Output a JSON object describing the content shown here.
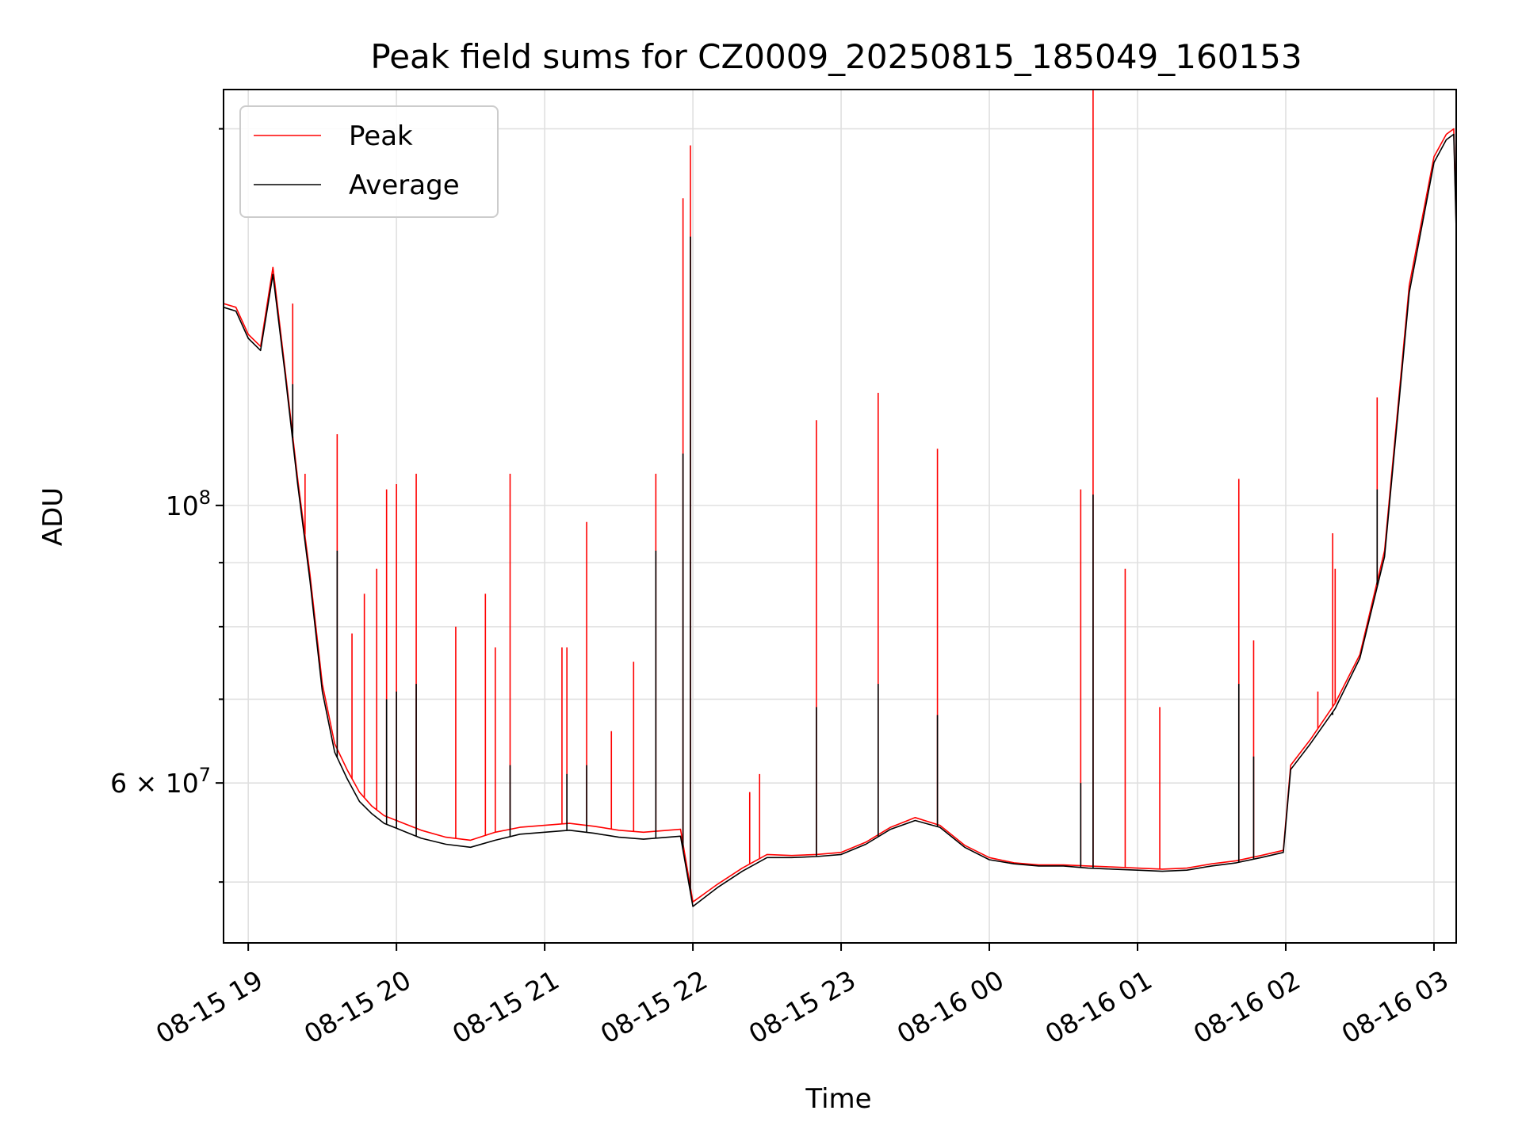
{
  "chart_data": {
    "type": "line",
    "title": "Peak field sums for CZ0009_20250815_185049_160153",
    "xlabel": "Time",
    "ylabel": "ADU",
    "y_scale": "log",
    "ylim": [
      44700000,
      215000000
    ],
    "xlim": [
      "2025-08-15 18:50",
      "2025-08-16 03:09"
    ],
    "x_ticks": [
      "08-15 19",
      "08-15 20",
      "08-15 21",
      "08-15 22",
      "08-15 23",
      "08-16 00",
      "08-16 01",
      "08-16 02",
      "08-16 03"
    ],
    "y_ticks": [
      {
        "value": 100000000,
        "mantissa": "10",
        "exponent": "8"
      },
      {
        "value": 60000000,
        "mantissa": "6 × 10",
        "exponent": "7"
      }
    ],
    "y_minor_ticks": [
      50000000,
      70000000,
      80000000,
      90000000,
      200000000
    ],
    "grid": true,
    "legend_position": "top-left",
    "series": [
      {
        "name": "Peak",
        "color": "#ff0000",
        "x": [
          "2025-08-15 18:50",
          "2025-08-15 18:55",
          "2025-08-15 19:00",
          "2025-08-15 19:05",
          "2025-08-15 19:10",
          "2025-08-15 19:15",
          "2025-08-15 19:20",
          "2025-08-15 19:25",
          "2025-08-15 19:30",
          "2025-08-15 19:35",
          "2025-08-15 19:40",
          "2025-08-15 19:45",
          "2025-08-15 19:50",
          "2025-08-15 19:55",
          "2025-08-15 20:00",
          "2025-08-15 20:10",
          "2025-08-15 20:20",
          "2025-08-15 20:30",
          "2025-08-15 20:40",
          "2025-08-15 20:50",
          "2025-08-15 21:00",
          "2025-08-15 21:10",
          "2025-08-15 21:20",
          "2025-08-15 21:30",
          "2025-08-15 21:40",
          "2025-08-15 21:55",
          "2025-08-15 22:00",
          "2025-08-15 22:10",
          "2025-08-15 22:20",
          "2025-08-15 22:30",
          "2025-08-15 22:40",
          "2025-08-15 22:50",
          "2025-08-15 23:00",
          "2025-08-15 23:10",
          "2025-08-15 23:20",
          "2025-08-15 23:30",
          "2025-08-15 23:40",
          "2025-08-15 23:50",
          "2025-08-16 00:00",
          "2025-08-16 00:10",
          "2025-08-16 00:20",
          "2025-08-16 00:30",
          "2025-08-16 00:40",
          "2025-08-16 00:50",
          "2025-08-16 01:00",
          "2025-08-16 01:10",
          "2025-08-16 01:20",
          "2025-08-16 01:30",
          "2025-08-16 01:40",
          "2025-08-16 01:50",
          "2025-08-16 01:59",
          "2025-08-16 02:02",
          "2025-08-16 02:10",
          "2025-08-16 02:20",
          "2025-08-16 02:30",
          "2025-08-16 02:40",
          "2025-08-16 02:50",
          "2025-08-16 03:00",
          "2025-08-16 03:05",
          "2025-08-16 03:08",
          "2025-08-16 03:09"
        ],
        "values": [
          145000000,
          144000000,
          137000000,
          134000000,
          155000000,
          128000000,
          105000000,
          88000000,
          72000000,
          64500000,
          61500000,
          59000000,
          57500000,
          56500000,
          56000000,
          55000000,
          54300000,
          54000000,
          54800000,
          55300000,
          55500000,
          55700000,
          55400000,
          55000000,
          54800000,
          55100000,
          48200000,
          49800000,
          51300000,
          52600000,
          52500000,
          52600000,
          52800000,
          53800000,
          55300000,
          56300000,
          55500000,
          53500000,
          52300000,
          51800000,
          51600000,
          51600000,
          51500000,
          51400000,
          51300000,
          51200000,
          51300000,
          51700000,
          52000000,
          52500000,
          53000000,
          62000000,
          65000000,
          69500000,
          76000000,
          92000000,
          150000000,
          190000000,
          198000000,
          200000000,
          168000000
        ]
      },
      {
        "name": "Average",
        "color": "#000000",
        "x": [
          "2025-08-15 18:50",
          "2025-08-15 18:55",
          "2025-08-15 19:00",
          "2025-08-15 19:05",
          "2025-08-15 19:10",
          "2025-08-15 19:15",
          "2025-08-15 19:20",
          "2025-08-15 19:25",
          "2025-08-15 19:30",
          "2025-08-15 19:35",
          "2025-08-15 19:40",
          "2025-08-15 19:45",
          "2025-08-15 19:50",
          "2025-08-15 19:55",
          "2025-08-15 20:00",
          "2025-08-15 20:10",
          "2025-08-15 20:20",
          "2025-08-15 20:30",
          "2025-08-15 20:40",
          "2025-08-15 20:50",
          "2025-08-15 21:00",
          "2025-08-15 21:10",
          "2025-08-15 21:20",
          "2025-08-15 21:30",
          "2025-08-15 21:40",
          "2025-08-15 21:55",
          "2025-08-15 22:00",
          "2025-08-15 22:10",
          "2025-08-15 22:20",
          "2025-08-15 22:30",
          "2025-08-15 22:40",
          "2025-08-15 22:50",
          "2025-08-15 23:00",
          "2025-08-15 23:10",
          "2025-08-15 23:20",
          "2025-08-15 23:30",
          "2025-08-15 23:40",
          "2025-08-15 23:50",
          "2025-08-16 00:00",
          "2025-08-16 00:10",
          "2025-08-16 00:20",
          "2025-08-16 00:30",
          "2025-08-16 00:40",
          "2025-08-16 00:50",
          "2025-08-16 01:00",
          "2025-08-16 01:10",
          "2025-08-16 01:20",
          "2025-08-16 01:30",
          "2025-08-16 01:40",
          "2025-08-16 01:50",
          "2025-08-16 01:59",
          "2025-08-16 02:02",
          "2025-08-16 02:10",
          "2025-08-16 02:20",
          "2025-08-16 02:30",
          "2025-08-16 02:40",
          "2025-08-16 02:50",
          "2025-08-16 03:00",
          "2025-08-16 03:05",
          "2025-08-16 03:08",
          "2025-08-16 03:09"
        ],
        "values": [
          144000000,
          143000000,
          136000000,
          133000000,
          153000000,
          127000000,
          104000000,
          87000000,
          71000000,
          63500000,
          60500000,
          58000000,
          56700000,
          55700000,
          55200000,
          54200000,
          53600000,
          53300000,
          54000000,
          54600000,
          54800000,
          55000000,
          54700000,
          54300000,
          54100000,
          54400000,
          47800000,
          49500000,
          51000000,
          52300000,
          52300000,
          52400000,
          52600000,
          53600000,
          55100000,
          56000000,
          55300000,
          53300000,
          52100000,
          51700000,
          51500000,
          51500000,
          51300000,
          51200000,
          51100000,
          51000000,
          51100000,
          51500000,
          51800000,
          52300000,
          52800000,
          61500000,
          64500000,
          68800000,
          75500000,
          91000000,
          148000000,
          188000000,
          196000000,
          198000000,
          166000000
        ]
      }
    ],
    "spikes": [
      {
        "series": "Peak",
        "x": "2025-08-15 19:18",
        "value": 145000000
      },
      {
        "series": "Peak",
        "x": "2025-08-15 19:23",
        "value": 106000000
      },
      {
        "series": "Peak",
        "x": "2025-08-15 19:36",
        "value": 114000000
      },
      {
        "series": "Peak",
        "x": "2025-08-15 19:42",
        "value": 79000000
      },
      {
        "series": "Peak",
        "x": "2025-08-15 19:47",
        "value": 85000000
      },
      {
        "series": "Peak",
        "x": "2025-08-15 19:52",
        "value": 89000000
      },
      {
        "series": "Peak",
        "x": "2025-08-15 19:56",
        "value": 103000000
      },
      {
        "series": "Peak",
        "x": "2025-08-15 20:00",
        "value": 104000000
      },
      {
        "series": "Peak",
        "x": "2025-08-15 20:08",
        "value": 106000000
      },
      {
        "series": "Peak",
        "x": "2025-08-15 20:24",
        "value": 80000000
      },
      {
        "series": "Peak",
        "x": "2025-08-15 20:36",
        "value": 85000000
      },
      {
        "series": "Peak",
        "x": "2025-08-15 20:40",
        "value": 77000000
      },
      {
        "series": "Peak",
        "x": "2025-08-15 20:46",
        "value": 106000000
      },
      {
        "series": "Peak",
        "x": "2025-08-15 21:07",
        "value": 77000000
      },
      {
        "series": "Peak",
        "x": "2025-08-15 21:09",
        "value": 77000000
      },
      {
        "series": "Peak",
        "x": "2025-08-15 21:17",
        "value": 97000000
      },
      {
        "series": "Peak",
        "x": "2025-08-15 21:27",
        "value": 66000000
      },
      {
        "series": "Peak",
        "x": "2025-08-15 21:36",
        "value": 75000000
      },
      {
        "series": "Peak",
        "x": "2025-08-15 21:45",
        "value": 106000000
      },
      {
        "series": "Peak",
        "x": "2025-08-15 21:56",
        "value": 176000000
      },
      {
        "series": "Peak",
        "x": "2025-08-15 21:59",
        "value": 194000000
      },
      {
        "series": "Peak",
        "x": "2025-08-15 22:23",
        "value": 59000000
      },
      {
        "series": "Peak",
        "x": "2025-08-15 22:27",
        "value": 61000000
      },
      {
        "series": "Peak",
        "x": "2025-08-15 22:50",
        "value": 117000000
      },
      {
        "series": "Peak",
        "x": "2025-08-15 23:15",
        "value": 123000000
      },
      {
        "series": "Peak",
        "x": "2025-08-15 23:39",
        "value": 111000000
      },
      {
        "series": "Peak",
        "x": "2025-08-16 00:37",
        "value": 103000000
      },
      {
        "series": "Peak",
        "x": "2025-08-16 00:42",
        "value": 215000000
      },
      {
        "series": "Peak",
        "x": "2025-08-16 00:55",
        "value": 89000000
      },
      {
        "series": "Peak",
        "x": "2025-08-16 01:09",
        "value": 69000000
      },
      {
        "series": "Peak",
        "x": "2025-08-16 01:41",
        "value": 105000000
      },
      {
        "series": "Peak",
        "x": "2025-08-16 01:47",
        "value": 78000000
      },
      {
        "series": "Peak",
        "x": "2025-08-16 02:13",
        "value": 71000000
      },
      {
        "series": "Peak",
        "x": "2025-08-16 02:19",
        "value": 95000000
      },
      {
        "series": "Peak",
        "x": "2025-08-16 02:20",
        "value": 89000000
      },
      {
        "series": "Peak",
        "x": "2025-08-16 02:37",
        "value": 122000000
      },
      {
        "series": "Average",
        "x": "2025-08-15 19:18",
        "value": 125000000
      },
      {
        "series": "Average",
        "x": "2025-08-15 19:36",
        "value": 92000000
      },
      {
        "series": "Average",
        "x": "2025-08-15 19:56",
        "value": 70000000
      },
      {
        "series": "Average",
        "x": "2025-08-15 20:00",
        "value": 71000000
      },
      {
        "series": "Average",
        "x": "2025-08-15 20:08",
        "value": 72000000
      },
      {
        "series": "Average",
        "x": "2025-08-15 20:46",
        "value": 62000000
      },
      {
        "series": "Average",
        "x": "2025-08-15 21:09",
        "value": 61000000
      },
      {
        "series": "Average",
        "x": "2025-08-15 21:17",
        "value": 62000000
      },
      {
        "series": "Average",
        "x": "2025-08-15 21:45",
        "value": 92000000
      },
      {
        "series": "Average",
        "x": "2025-08-15 21:56",
        "value": 110000000
      },
      {
        "series": "Average",
        "x": "2025-08-15 21:59",
        "value": 164000000
      },
      {
        "series": "Average",
        "x": "2025-08-15 22:50",
        "value": 69000000
      },
      {
        "series": "Average",
        "x": "2025-08-15 23:15",
        "value": 72000000
      },
      {
        "series": "Average",
        "x": "2025-08-15 23:39",
        "value": 68000000
      },
      {
        "series": "Average",
        "x": "2025-08-16 00:37",
        "value": 60000000
      },
      {
        "series": "Average",
        "x": "2025-08-16 00:42",
        "value": 102000000
      },
      {
        "series": "Average",
        "x": "2025-08-16 01:41",
        "value": 72000000
      },
      {
        "series": "Average",
        "x": "2025-08-16 01:47",
        "value": 63000000
      },
      {
        "series": "Average",
        "x": "2025-08-16 02:19",
        "value": 68000000
      },
      {
        "series": "Average",
        "x": "2025-08-16 02:37",
        "value": 103000000
      }
    ]
  }
}
